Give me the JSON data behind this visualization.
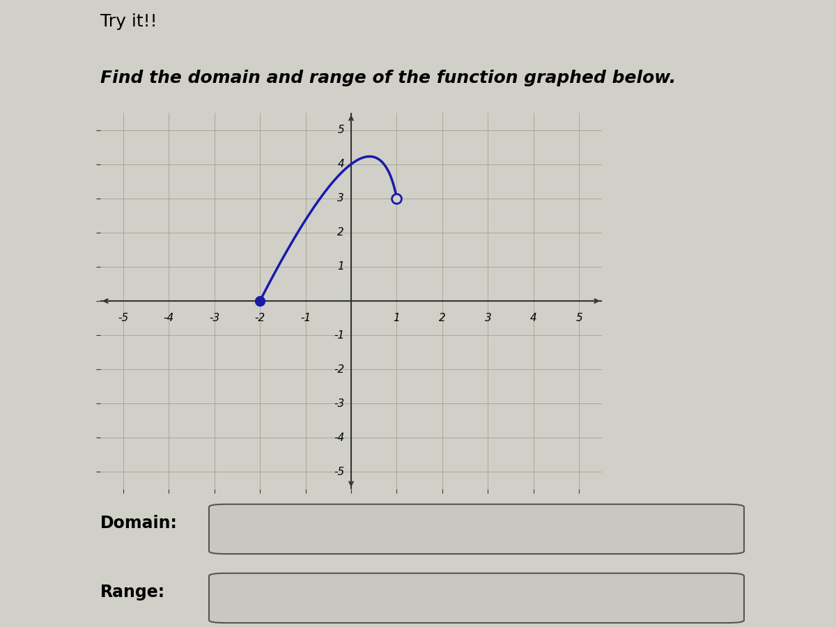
{
  "title1": "Try it!!",
  "title2": "Find the domain and range of the function graphed below.",
  "background_color": "#d0cfc8",
  "grid_color": "#999988",
  "axis_color": "#333333",
  "curve_color": "#1a1aaa",
  "curve_linewidth": 2.5,
  "closed_dot_x": -2,
  "closed_dot_y": 0,
  "open_dot_x": 1,
  "open_dot_y": 3,
  "dot_size": 10,
  "xlim": [
    -5.5,
    5.5
  ],
  "ylim": [
    -5.5,
    5.5
  ],
  "label1": "Domain:",
  "label2": "Range:",
  "box_color": "#c8c7c0",
  "box_edge_color": "#555555",
  "bezier_p0": [
    -2,
    0
  ],
  "bezier_p1": [
    0.5,
    6.5
  ],
  "bezier_p2": [
    1,
    3
  ]
}
